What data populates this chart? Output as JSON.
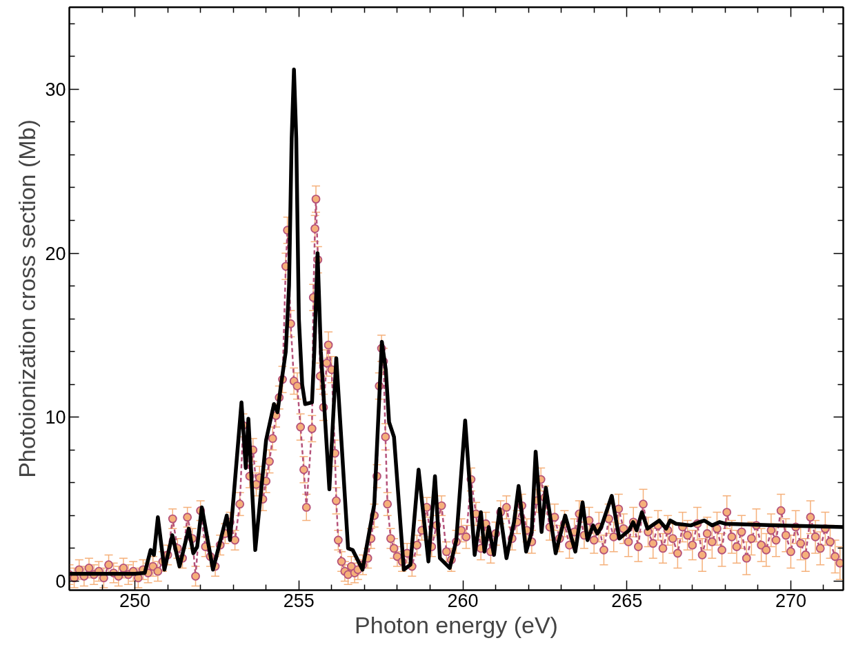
{
  "chart_data": {
    "type": "line",
    "xlabel": "Photon energy (eV)",
    "ylabel": "Photoionization cross section (Mb)",
    "xlim": [
      248,
      271.6
    ],
    "ylim": [
      -0.55,
      35
    ],
    "xticks": [
      {
        "value": 249,
        "label": null
      },
      250,
      {
        "value": 251,
        "label": null
      },
      {
        "value": 252,
        "label": null
      },
      {
        "value": 253,
        "label": null
      },
      {
        "value": 254,
        "label": null
      },
      255,
      {
        "value": 256,
        "label": null
      },
      {
        "value": 257,
        "label": null
      },
      {
        "value": 258,
        "label": null
      },
      {
        "value": 259,
        "label": null
      },
      260,
      {
        "value": 261,
        "label": null
      },
      {
        "value": 262,
        "label": null
      },
      {
        "value": 263,
        "label": null
      },
      {
        "value": 264,
        "label": null
      },
      265,
      {
        "value": 266,
        "label": null
      },
      {
        "value": 267,
        "label": null
      },
      {
        "value": 268,
        "label": null
      },
      {
        "value": 269,
        "label": null
      },
      270,
      {
        "value": 271,
        "label": null
      }
    ],
    "yticks": [
      0,
      {
        "value": 2,
        "label": null
      },
      {
        "value": 4,
        "label": null
      },
      {
        "value": 6,
        "label": null
      },
      {
        "value": 8,
        "label": null
      },
      10,
      {
        "value": 12,
        "label": null
      },
      {
        "value": 14,
        "label": null
      },
      {
        "value": 16,
        "label": null
      },
      {
        "value": 18,
        "label": null
      },
      20,
      {
        "value": 22,
        "label": null
      },
      {
        "value": 24,
        "label": null
      },
      {
        "value": 26,
        "label": null
      },
      {
        "value": 28,
        "label": null
      },
      30,
      {
        "value": 32,
        "label": null
      },
      {
        "value": 34,
        "label": null
      }
    ],
    "grid": false,
    "series": [
      {
        "marker": "circle",
        "line_style": "dashed",
        "color": "#f5b07a",
        "x": [
          248.0,
          248.15,
          248.3,
          248.45,
          248.6,
          248.75,
          248.9,
          249.05,
          249.2,
          249.35,
          249.5,
          249.65,
          249.8,
          249.95,
          250.1,
          250.25,
          250.4,
          250.55,
          250.7,
          250.85,
          251.0,
          251.15,
          251.3,
          251.45,
          251.6,
          251.75,
          251.85,
          252.0,
          252.15,
          252.3,
          252.45,
          252.6,
          252.75,
          252.9,
          253.05,
          253.2,
          253.3,
          253.5,
          253.6,
          253.7,
          253.8,
          253.9,
          254.0,
          254.1,
          254.2,
          254.3,
          254.4,
          254.5,
          254.6,
          254.65,
          254.75,
          254.85,
          254.95,
          255.05,
          255.15,
          255.23,
          255.4,
          255.44,
          255.49,
          255.52,
          255.58,
          255.65,
          255.75,
          255.85,
          255.9,
          256.0,
          256.1,
          256.14,
          256.2,
          256.3,
          256.4,
          256.5,
          256.6,
          256.7,
          256.8,
          256.95,
          257.1,
          257.2,
          257.3,
          257.38,
          257.45,
          257.52,
          257.58,
          257.64,
          257.7,
          257.8,
          257.9,
          258.0,
          258.15,
          258.3,
          258.45,
          258.6,
          258.75,
          258.9,
          259.05,
          259.2,
          259.35,
          259.5,
          259.65,
          259.8,
          259.95,
          260.1,
          260.25,
          260.4,
          260.55,
          260.7,
          260.85,
          261.0,
          261.15,
          261.33,
          261.5,
          261.65,
          261.8,
          261.95,
          262.1,
          262.25,
          262.38,
          262.5,
          262.65,
          262.8,
          262.95,
          263.1,
          263.25,
          263.4,
          263.55,
          263.7,
          263.85,
          264.0,
          264.15,
          264.3,
          264.45,
          264.6,
          264.75,
          264.9,
          265.05,
          265.2,
          265.35,
          265.5,
          265.65,
          265.8,
          265.95,
          266.1,
          266.25,
          266.4,
          266.55,
          266.7,
          266.85,
          267.0,
          267.15,
          267.3,
          267.45,
          267.6,
          267.75,
          267.9,
          268.05,
          268.2,
          268.35,
          268.5,
          268.65,
          268.8,
          268.95,
          269.1,
          269.25,
          269.4,
          269.55,
          269.7,
          269.85,
          270.0,
          270.15,
          270.3,
          270.45,
          270.6,
          270.75,
          270.9,
          271.05,
          271.2,
          271.35,
          271.5
        ],
        "values": [
          0.4,
          0.2,
          0.7,
          0.3,
          0.8,
          0.4,
          0.6,
          0.2,
          1.0,
          0.5,
          0.3,
          0.8,
          0.4,
          0.6,
          0.2,
          0.7,
          0.5,
          0.9,
          0.6,
          1.2,
          1.6,
          3.8,
          2.0,
          1.4,
          3.9,
          2.6,
          0.3,
          4.3,
          2.1,
          1.5,
          0.9,
          2.2,
          2.9,
          3.6,
          2.5,
          4.7,
          9.5,
          6.4,
          8.0,
          5.9,
          6.3,
          5.0,
          6.1,
          7.3,
          8.7,
          10.1,
          11.2,
          12.3,
          19.2,
          21.4,
          15.7,
          12.2,
          11.9,
          9.4,
          6.8,
          4.5,
          9.3,
          17.3,
          21.5,
          23.3,
          19.6,
          12.5,
          10.6,
          13.3,
          14.4,
          12.9,
          7.8,
          4.9,
          2.5,
          1.2,
          0.6,
          0.4,
          0.9,
          0.5,
          0.7,
          1.0,
          1.4,
          2.6,
          4.0,
          6.4,
          11.9,
          14.2,
          13.4,
          8.8,
          4.7,
          2.6,
          2.0,
          1.5,
          1.2,
          1.7,
          0.9,
          2.2,
          3.1,
          4.5,
          2.1,
          3.4,
          4.6,
          1.8,
          1.3,
          2.4,
          3.1,
          2.7,
          6.2,
          4.1,
          2.0,
          3.5,
          1.8,
          2.9,
          4.2,
          4.5,
          2.6,
          3.6,
          4.6,
          3.1,
          2.4,
          4.9,
          6.2,
          5.1,
          3.3,
          3.9,
          2.6,
          3.5,
          2.2,
          3.0,
          4.1,
          2.8,
          3.7,
          2.5,
          3.3,
          1.9,
          3.8,
          2.7,
          4.4,
          3.2,
          2.4,
          3.6,
          2.1,
          4.7,
          3.0,
          2.3,
          3.4,
          2.0,
          3.1,
          2.6,
          1.7,
          3.3,
          2.8,
          2.2,
          3.5,
          1.6,
          2.9,
          2.4,
          3.2,
          1.9,
          4.2,
          2.7,
          2.1,
          3.0,
          1.4,
          2.6,
          3.4,
          2.2,
          1.9,
          3.1,
          2.5,
          4.3,
          2.8,
          1.8,
          3.3,
          2.3,
          1.6,
          3.9,
          2.7,
          2.0,
          3.2,
          2.4,
          1.5,
          1.1
        ],
        "errors": [
          0.6,
          0.6,
          0.6,
          0.6,
          0.6,
          0.6,
          0.6,
          0.6,
          0.6,
          0.6,
          0.6,
          0.6,
          0.6,
          0.6,
          0.6,
          0.6,
          0.6,
          0.6,
          0.6,
          0.6,
          0.6,
          0.6,
          0.6,
          0.6,
          0.6,
          0.6,
          0.6,
          0.6,
          0.6,
          0.6,
          0.6,
          0.6,
          0.6,
          0.6,
          0.6,
          0.7,
          0.7,
          0.7,
          0.7,
          0.7,
          0.7,
          0.7,
          0.7,
          0.7,
          0.7,
          0.7,
          0.7,
          0.8,
          0.8,
          0.8,
          0.8,
          0.8,
          0.8,
          0.8,
          0.8,
          0.8,
          0.8,
          0.8,
          0.8,
          0.8,
          0.8,
          0.8,
          0.8,
          0.8,
          0.8,
          0.8,
          0.8,
          0.8,
          0.6,
          0.6,
          0.6,
          0.6,
          0.6,
          0.6,
          0.6,
          0.6,
          0.6,
          0.6,
          0.7,
          0.7,
          0.8,
          0.8,
          0.8,
          0.8,
          0.7,
          0.6,
          0.6,
          0.6,
          0.6,
          0.6,
          0.6,
          0.6,
          0.6,
          0.6,
          0.6,
          0.6,
          0.6,
          0.6,
          0.7,
          0.7,
          0.7,
          0.7,
          0.7,
          0.7,
          0.7,
          0.7,
          0.7,
          0.7,
          0.7,
          0.7,
          0.7,
          0.7,
          0.7,
          0.7,
          0.7,
          0.7,
          0.7,
          0.7,
          0.8,
          0.8,
          0.8,
          0.8,
          0.8,
          0.8,
          0.8,
          0.8,
          0.8,
          0.8,
          0.9,
          0.9,
          0.9,
          0.9,
          0.9,
          0.9,
          0.9,
          0.9,
          0.9,
          0.9,
          0.9,
          0.9,
          0.9,
          0.9,
          0.9,
          0.9,
          0.9,
          0.9,
          0.9,
          0.9,
          1.0,
          1.0,
          1.0,
          1.0,
          1.0,
          1.0,
          1.0,
          1.0,
          1.0,
          1.0,
          1.0,
          1.0,
          1.0,
          1.0,
          1.0,
          1.0,
          1.0,
          1.0,
          1.0,
          1.0,
          1.0,
          1.0,
          1.0,
          1.0,
          1.0,
          1.0,
          1.0,
          1.0,
          1.0,
          1.0
        ]
      },
      {
        "marker": "none",
        "line_style": "solid",
        "color": "#000000",
        "x": [
          248.0,
          250.0,
          250.3,
          250.48,
          250.58,
          250.7,
          250.9,
          251.14,
          251.36,
          251.64,
          251.78,
          251.9,
          252.04,
          252.38,
          252.8,
          252.9,
          253.25,
          253.38,
          253.46,
          253.67,
          254.0,
          254.24,
          254.35,
          254.45,
          254.6,
          254.7,
          254.78,
          254.85,
          254.92,
          255.0,
          255.1,
          255.19,
          255.4,
          255.47,
          255.57,
          255.67,
          255.93,
          256.14,
          256.5,
          256.64,
          256.94,
          257.3,
          257.53,
          257.65,
          257.75,
          257.9,
          258.2,
          258.4,
          258.65,
          258.95,
          259.15,
          259.3,
          259.6,
          259.8,
          260.07,
          260.36,
          260.55,
          260.66,
          260.79,
          260.95,
          261.12,
          261.33,
          261.56,
          261.7,
          261.93,
          262.1,
          262.22,
          262.4,
          262.53,
          262.83,
          263.12,
          263.43,
          263.65,
          263.8,
          263.97,
          264.1,
          264.22,
          264.54,
          264.77,
          265.07,
          265.19,
          265.3,
          265.46,
          265.63,
          265.99,
          266.2,
          266.32,
          266.5,
          266.95,
          267.36,
          267.6,
          267.83,
          268.0,
          269.5,
          271.6
        ],
        "values": [
          0.45,
          0.45,
          0.5,
          1.9,
          1.6,
          3.9,
          0.7,
          2.8,
          0.9,
          3.2,
          1.7,
          2.1,
          4.5,
          0.7,
          4.0,
          2.5,
          10.9,
          6.9,
          9.9,
          1.9,
          8.6,
          10.8,
          10.3,
          11.9,
          14.0,
          18.0,
          27.0,
          31.2,
          27.0,
          16.0,
          12.0,
          10.8,
          10.9,
          14.0,
          20.0,
          14.0,
          5.6,
          13.6,
          2.0,
          1.9,
          0.7,
          4.7,
          14.6,
          12.9,
          9.7,
          8.8,
          0.7,
          1.0,
          6.8,
          1.2,
          6.4,
          1.4,
          0.8,
          2.5,
          9.8,
          1.6,
          4.2,
          1.8,
          3.3,
          1.6,
          4.4,
          1.4,
          3.6,
          5.8,
          1.8,
          3.0,
          7.9,
          3.0,
          5.7,
          1.7,
          4.0,
          1.8,
          4.8,
          2.5,
          3.4,
          2.9,
          3.3,
          5.2,
          2.6,
          3.1,
          3.6,
          3.1,
          4.2,
          3.2,
          3.7,
          3.2,
          3.7,
          3.5,
          3.4,
          3.7,
          3.4,
          3.6,
          3.5,
          3.4,
          3.3
        ]
      }
    ]
  }
}
